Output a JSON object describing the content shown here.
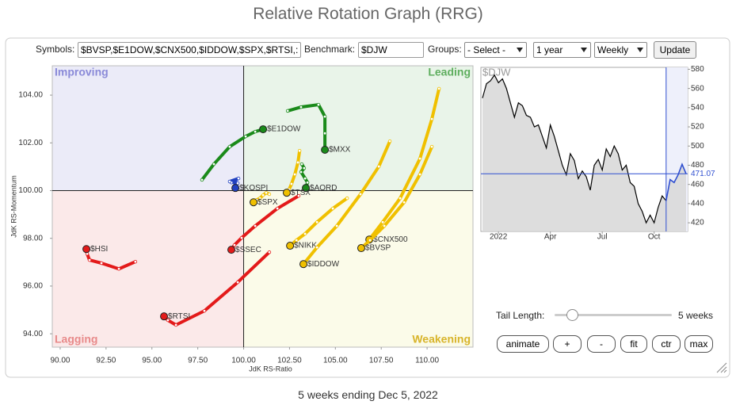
{
  "header": {
    "title": "Relative Rotation Graph (RRG)"
  },
  "controls": {
    "symbols_label": "Symbols:",
    "symbols": "$BVSP,$E1DOW,$CNX500,$IDDOW,$SPX,$RTSI,:",
    "benchmark_label": "Benchmark:",
    "benchmark": "$DJW",
    "groups_label": "Groups:",
    "groups": "- Select -",
    "period": "1 year",
    "interval": "Weekly",
    "update": "Update",
    "tail_length_label": "Tail Length:",
    "tail_length": "5 weeks",
    "buttons": [
      "animate",
      "+",
      "-",
      "fit",
      "ctr",
      "max"
    ]
  },
  "footer": "5 weeks ending Dec 5, 2022",
  "chart_data": [
    {
      "type": "scatter",
      "x_label": "JdK RS-Ratio",
      "y_label": "JdK RS-Momentum",
      "xlim": [
        89.57,
        112.5
      ],
      "ylim": [
        93.44,
        105.23
      ],
      "quadrant_center": [
        100,
        100
      ],
      "xticks": [
        {
          "value": 90,
          "label": "90.00"
        },
        {
          "value": 92.5,
          "label": "92.50"
        },
        {
          "value": 95,
          "label": "95.00"
        },
        {
          "value": 97.5,
          "label": "97.50"
        },
        {
          "value": 100,
          "label": "100.00"
        },
        {
          "value": 102.5,
          "label": "102.50"
        },
        {
          "value": 105,
          "label": "105.00"
        },
        {
          "value": 107.5,
          "label": "107.50"
        },
        {
          "value": 110,
          "label": "110.00"
        }
      ],
      "yticks": [
        {
          "value": 94,
          "label": "94.00"
        },
        {
          "value": 96,
          "label": "96.00"
        },
        {
          "value": 98,
          "label": "98.00"
        },
        {
          "value": 100,
          "label": "100.00"
        },
        {
          "value": 102,
          "label": "102.00"
        },
        {
          "value": 104,
          "label": "104.00"
        }
      ],
      "quadrants": [
        {
          "name": "Improving",
          "fill": "#ebebf8",
          "color": "#8a8ad8"
        },
        {
          "name": "Leading",
          "fill": "#e9f4e9",
          "color": "#5fae5f"
        },
        {
          "name": "Lagging",
          "fill": "#fbe9e9",
          "color": "#e88a8a"
        },
        {
          "name": "Weakening",
          "fill": "#fbfbe9",
          "color": "#d8b42a"
        }
      ],
      "series": [
        {
          "name": "$HSI",
          "color": "#e31a1a",
          "x": [
            94.1,
            93.2,
            92.25,
            91.6,
            91.47,
            91.43
          ],
          "y": [
            97.02,
            96.72,
            96.96,
            97.09,
            97.35,
            97.55
          ]
        },
        {
          "name": "$RTSI",
          "color": "#e31a1a",
          "x": [
            101.4,
            99.68,
            97.86,
            96.31,
            95.87,
            95.66
          ],
          "y": [
            97.42,
            96.16,
            94.96,
            94.37,
            94.57,
            94.73
          ]
        },
        {
          "name": "$SSEC",
          "color": "#e31a1a",
          "x": [
            103.0,
            101.84,
            100.63,
            99.89,
            99.5,
            99.33
          ],
          "y": [
            99.78,
            99.25,
            98.52,
            98.02,
            97.72,
            97.52
          ]
        },
        {
          "name": "$E1DOW",
          "color": "#1a8a1a",
          "x": [
            97.73,
            98.38,
            99.24,
            100.11,
            100.63,
            101.06
          ],
          "y": [
            100.45,
            101.11,
            101.84,
            102.27,
            102.47,
            102.57
          ]
        },
        {
          "name": "$MXX",
          "color": "#1a8a1a",
          "x": [
            102.4,
            103.13,
            104.08,
            104.43,
            104.43,
            104.43
          ],
          "y": [
            103.34,
            103.5,
            103.6,
            103.1,
            102.4,
            101.71
          ]
        },
        {
          "name": "$AORD",
          "color": "#1a8a1a",
          "x": [
            103.17,
            103.3,
            103.13,
            103.35,
            103.48,
            103.39
          ],
          "y": [
            101.11,
            100.94,
            100.78,
            100.51,
            100.34,
            100.11
          ]
        },
        {
          "name": "$KOSPI",
          "color": "#2040c0",
          "x": [
            99.33,
            99.72,
            99.24,
            99.68,
            99.5,
            99.55
          ],
          "y": [
            100.34,
            100.51,
            100.38,
            100.31,
            100.21,
            100.11
          ]
        },
        {
          "name": "$TSX",
          "color": "#f0c000",
          "x": [
            103.05,
            102.96,
            102.79,
            102.61,
            102.48,
            102.35
          ],
          "y": [
            101.67,
            101.18,
            100.68,
            100.28,
            100.05,
            99.91
          ]
        },
        {
          "name": "$SPX",
          "color": "#f0c000",
          "x": [
            101.4,
            101.23,
            101.06,
            100.89,
            100.71,
            100.54
          ],
          "y": [
            99.85,
            99.91,
            99.81,
            99.68,
            99.61,
            99.51
          ]
        },
        {
          "name": "$NIKK",
          "color": "#f0c000",
          "x": [
            105.64,
            104.86,
            104.0,
            103.35,
            102.88,
            102.53
          ],
          "y": [
            99.68,
            99.25,
            98.68,
            98.19,
            97.92,
            97.69
          ]
        },
        {
          "name": "$IDDOW",
          "color": "#f0c000",
          "x": [
            107.97,
            107.37,
            106.37,
            105.08,
            104.0,
            103.26
          ],
          "y": [
            102.07,
            101.01,
            99.85,
            98.52,
            97.62,
            96.92
          ]
        },
        {
          "name": "$CNX500",
          "color": "#f0c000",
          "x": [
            110.65,
            110.26,
            109.61,
            108.53,
            107.58,
            106.85
          ],
          "y": [
            104.27,
            103.0,
            101.34,
            99.68,
            98.68,
            97.95
          ]
        },
        {
          "name": "$BVSP",
          "color": "#f0c000",
          "x": [
            110.26,
            109.61,
            108.75,
            107.67,
            106.89,
            106.41
          ],
          "y": [
            101.84,
            100.68,
            99.51,
            98.52,
            97.92,
            97.59
          ]
        }
      ]
    },
    {
      "type": "line",
      "title": "$DJW",
      "color": "#000000",
      "highlight_color": "#2f4fd0",
      "fill_color": "#d9d9d9",
      "categories": [
        null,
        null,
        null,
        null,
        "2022",
        null,
        null,
        null,
        null,
        null,
        null,
        null,
        null,
        null,
        null,
        null,
        null,
        "Apr",
        null,
        null,
        null,
        null,
        null,
        null,
        null,
        null,
        null,
        null,
        null,
        null,
        "Jul",
        null,
        null,
        null,
        null,
        null,
        null,
        null,
        null,
        null,
        null,
        null,
        null,
        "Oct",
        null,
        null,
        null,
        null,
        null,
        null,
        null,
        null
      ],
      "values": [
        550,
        565,
        568,
        574,
        566,
        570,
        560,
        545,
        530,
        545,
        542,
        532,
        530,
        520,
        522,
        510,
        498,
        522,
        510,
        495,
        480,
        470,
        492,
        485,
        466,
        474,
        468,
        454,
        480,
        486,
        475,
        497,
        489,
        500,
        492,
        475,
        480,
        462,
        458,
        440,
        432,
        420,
        428,
        420,
        436,
        448,
        443,
        465,
        462,
        470,
        481,
        471.07
      ],
      "ylim": [
        411,
        582
      ],
      "yticks": [
        420,
        440,
        460,
        480,
        500,
        520,
        540,
        560,
        580
      ]
    }
  ]
}
